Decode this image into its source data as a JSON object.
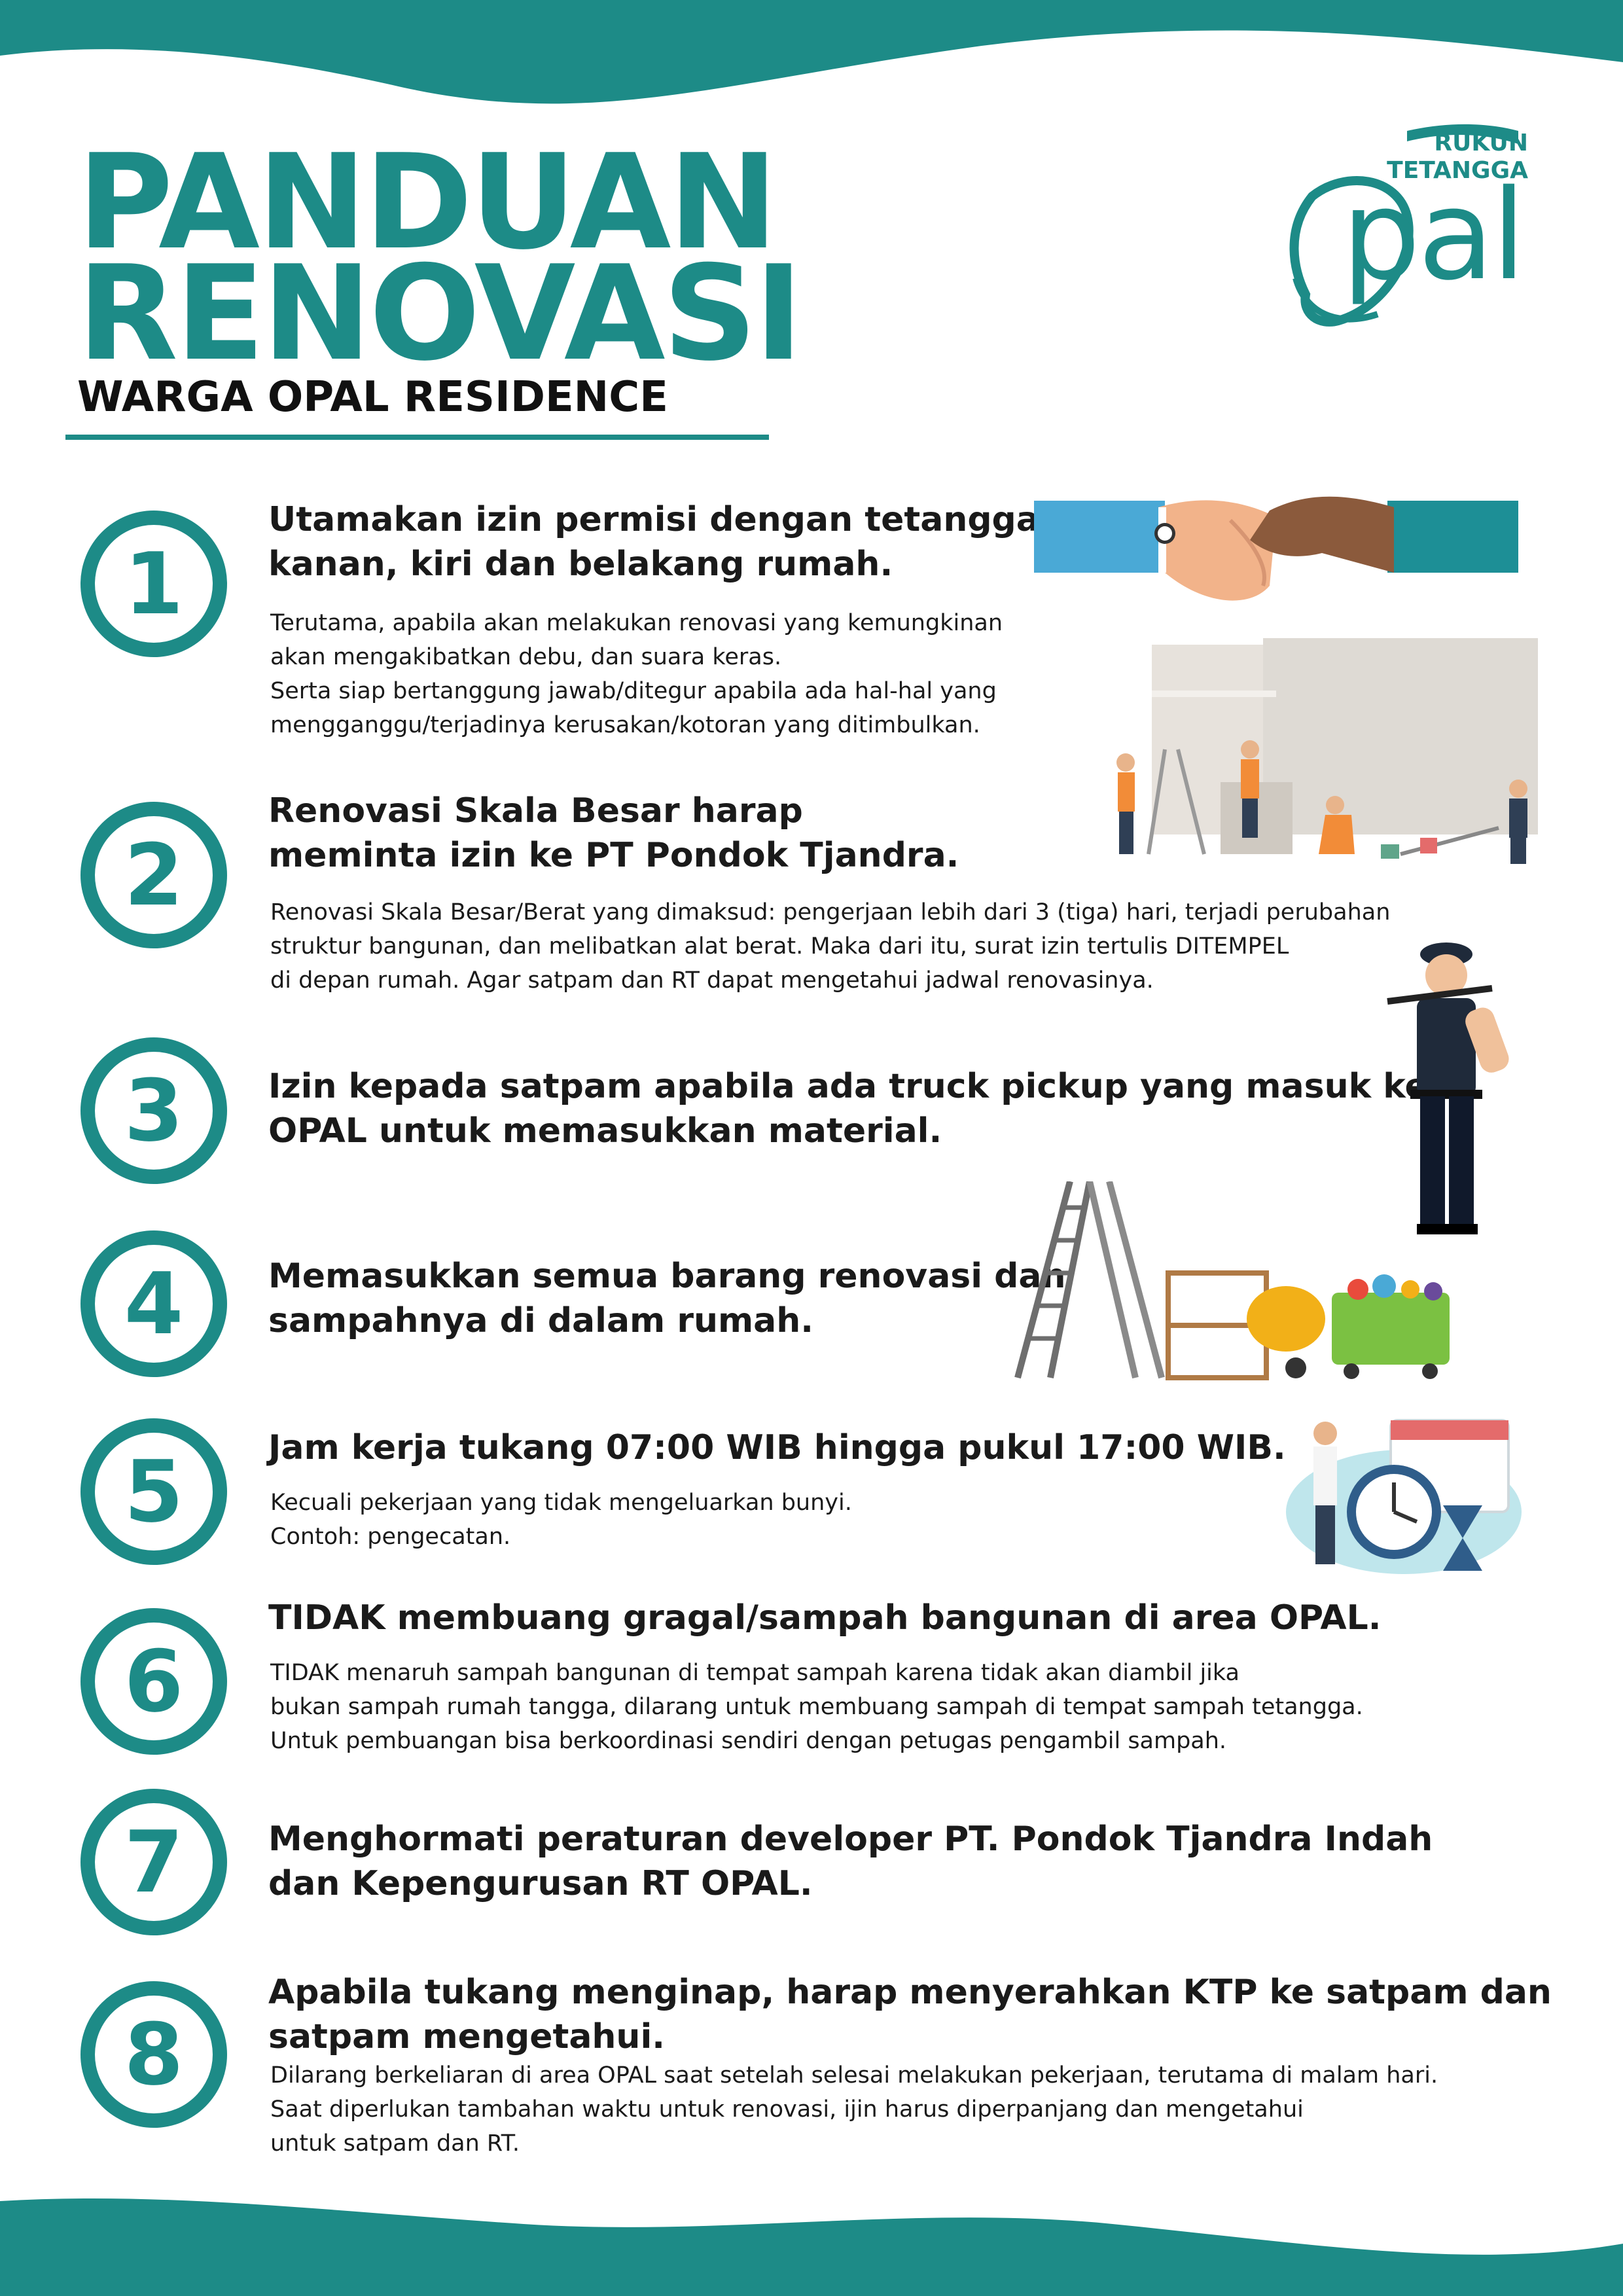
{
  "header": {
    "title_line1": "PANDUAN",
    "title_line2": "RENOVASI",
    "subtitle": "WARGA OPAL RESIDENCE"
  },
  "logo": {
    "line1": "RUKUN",
    "line2": "TETANGGA",
    "wordmark": "pal"
  },
  "colors": {
    "accent": "#1d8b87",
    "text": "#1a1a1a",
    "wave": "#1d8b87"
  },
  "items": [
    {
      "number": "1",
      "heading": "Utamakan izin  permisi dengan tetangga\nkanan, kiri dan belakang rumah.",
      "body": "Terutama, apabila akan melakukan renovasi yang kemungkinan\nakan mengakibatkan debu, dan suara keras.\nSerta siap bertanggung jawab/ditegur apabila ada hal-hal yang\nmengganggu/terjadinya kerusakan/kotoran yang ditimbulkan.",
      "icon": "handshake-illustration"
    },
    {
      "number": "2",
      "heading": "Renovasi Skala Besar harap\nmeminta izin ke PT Pondok Tjandra.",
      "body": "Renovasi Skala Besar/Berat yang dimaksud: pengerjaan lebih dari 3 (tiga) hari, terjadi perubahan\nstruktur bangunan, dan melibatkan alat berat. Maka dari itu, surat izin tertulis DITEMPEL\ndi depan rumah. Agar satpam dan RT dapat mengetahui jadwal renovasinya.",
      "icon": "construction-workers-illustration"
    },
    {
      "number": "3",
      "heading": "Izin kepada satpam apabila ada truck pickup yang masuk ke\nOPAL untuk memasukkan material.",
      "body": "",
      "icon": "security-guard-illustration"
    },
    {
      "number": "4",
      "heading": "Memasukkan semua barang renovasi dan\nsampahnya di dalam rumah.",
      "body": "",
      "icon": "ladder-mixer-bin-illustration"
    },
    {
      "number": "5",
      "heading": "Jam kerja tukang 07:00 WIB hingga pukul 17:00 WIB.",
      "body": "Kecuali pekerjaan yang tidak mengeluarkan bunyi.\nContoh: pengecatan.",
      "icon": "clock-schedule-illustration"
    },
    {
      "number": "6",
      "heading": "TIDAK membuang gragal/sampah bangunan di area OPAL.",
      "body": "TIDAK menaruh sampah bangunan di tempat sampah karena tidak akan diambil jika\nbukan sampah rumah tangga, dilarang untuk membuang sampah di tempat sampah tetangga.\nUntuk pembuangan bisa berkoordinasi sendiri dengan petugas pengambil sampah.",
      "icon": ""
    },
    {
      "number": "7",
      "heading": "Menghormati peraturan developer PT. Pondok Tjandra Indah\ndan Kepengurusan RT OPAL.",
      "body": "",
      "icon": ""
    },
    {
      "number": "8",
      "heading": "Apabila tukang menginap, harap menyerahkan KTP ke satpam dan\nsatpam mengetahui.",
      "body": "Dilarang berkeliaran di area OPAL saat setelah selesai melakukan pekerjaan, terutama di malam hari.\nSaat diperlukan tambahan waktu untuk renovasi, ijin harus diperpanjang dan mengetahui\nuntuk satpam dan RT.",
      "icon": ""
    }
  ]
}
